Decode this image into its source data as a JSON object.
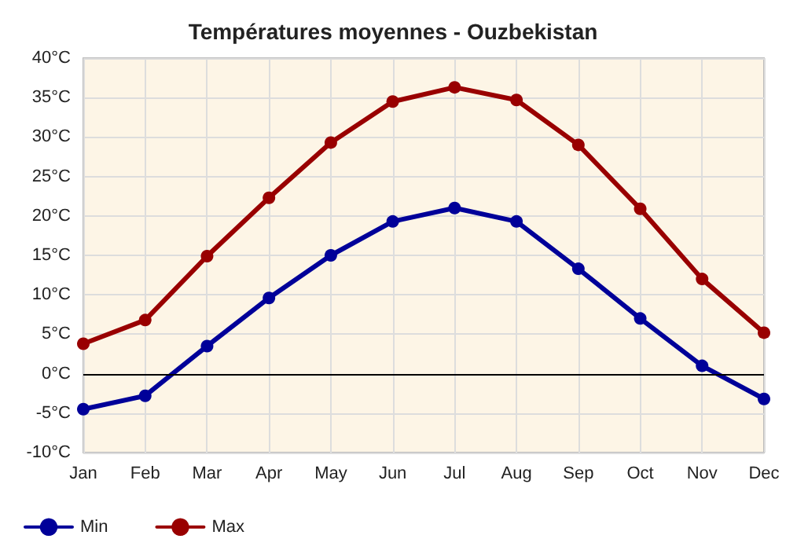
{
  "chart_data": {
    "type": "line",
    "title": "Températures moyennes - Ouzbekistan",
    "categories": [
      "Jan",
      "Feb",
      "Mar",
      "Apr",
      "May",
      "Jun",
      "Jul",
      "Aug",
      "Sep",
      "Oct",
      "Nov",
      "Dec"
    ],
    "series": [
      {
        "name": "Min",
        "color": "#000099",
        "values": [
          -4.5,
          -2.8,
          3.5,
          9.6,
          15,
          19.3,
          21,
          19.3,
          13.3,
          7,
          1,
          -3.2
        ]
      },
      {
        "name": "Max",
        "color": "#990000",
        "values": [
          3.8,
          6.8,
          14.9,
          22.3,
          29.3,
          34.5,
          36.3,
          34.7,
          29,
          20.9,
          12,
          5.2
        ]
      }
    ],
    "ylim": [
      -10,
      40
    ],
    "yticks": [
      {
        "value": -10,
        "label": "-10°C"
      },
      {
        "value": -5,
        "label": "-5°C"
      },
      {
        "value": 0,
        "label": "0°C"
      },
      {
        "value": 5,
        "label": "5°C"
      },
      {
        "value": 10,
        "label": "10°C"
      },
      {
        "value": 15,
        "label": "15°C"
      },
      {
        "value": 20,
        "label": "20°C"
      },
      {
        "value": 25,
        "label": "25°C"
      },
      {
        "value": 30,
        "label": "30°C"
      },
      {
        "value": 35,
        "label": "35°C"
      },
      {
        "value": 40,
        "label": "40°C"
      }
    ],
    "ref_lines": [
      {
        "axis": "y",
        "value": 0,
        "color": "#000000"
      }
    ],
    "grid": true,
    "legend": "bottom left",
    "marker": "circle",
    "line_style": "solid"
  }
}
